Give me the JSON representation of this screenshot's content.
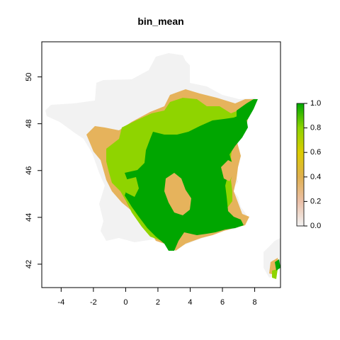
{
  "title": "bin_mean",
  "x_ticks": [
    -4,
    -2,
    0,
    2,
    4,
    6,
    8
  ],
  "y_ticks": [
    42,
    44,
    46,
    48,
    50
  ],
  "xlim": [
    -5.2,
    9.6
  ],
  "ylim": [
    41.0,
    51.5
  ],
  "legend": {
    "ticks": [
      "0.0",
      "0.2",
      "0.4",
      "0.6",
      "0.8",
      "1.0"
    ],
    "gradient_colors": [
      "#f2f2f2",
      "#ebc0a8",
      "#e0b050",
      "#dccc00",
      "#8ed400",
      "#00a800"
    ]
  },
  "colors": {
    "outside": "#f2f2f2",
    "low": "#e6b35c",
    "mid": "#8fd400",
    "high": "#00a600"
  }
}
